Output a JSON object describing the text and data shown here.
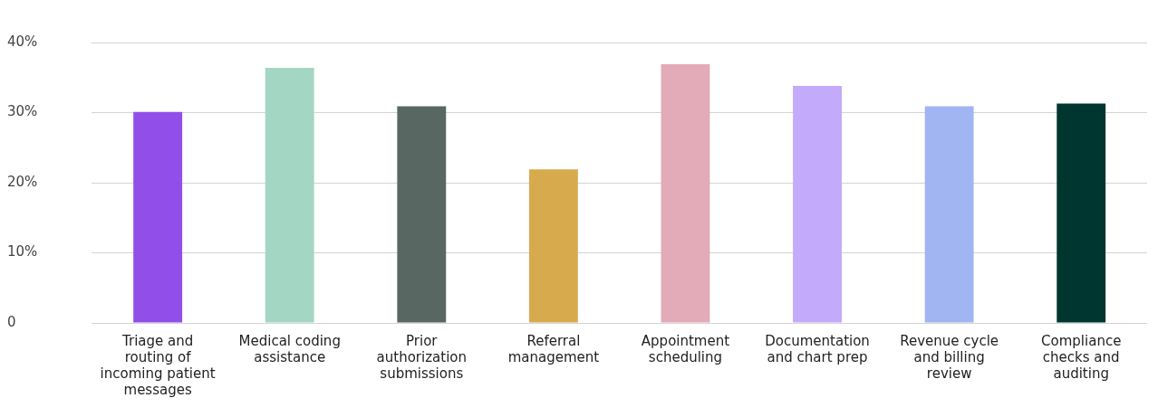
{
  "chart_data": {
    "type": "bar",
    "categories": [
      "Triage and routing of incoming patient messages",
      "Medical coding assistance",
      "Prior authorization submissions",
      "Referral management",
      "Appointment scheduling",
      "Documentation and chart prep",
      "Revenue cycle and billing review",
      "Compliance checks and auditing"
    ],
    "values": [
      30.1,
      36.4,
      30.9,
      21.9,
      36.9,
      33.8,
      30.9,
      31.3
    ],
    "colors": [
      "#914ee9",
      "#a3d7c3",
      "#586762",
      "#d8aa4e",
      "#e2abb7",
      "#c4aafa",
      "#a1b5f2",
      "#003630"
    ],
    "ylim": [
      0,
      40
    ],
    "yticks": [
      {
        "value": 0,
        "label": "0"
      },
      {
        "value": 10,
        "label": "10%"
      },
      {
        "value": 20,
        "label": "20%"
      },
      {
        "value": 30,
        "label": "30%"
      },
      {
        "value": 40,
        "label": "40%"
      }
    ],
    "grid": "y",
    "legend": false
  }
}
